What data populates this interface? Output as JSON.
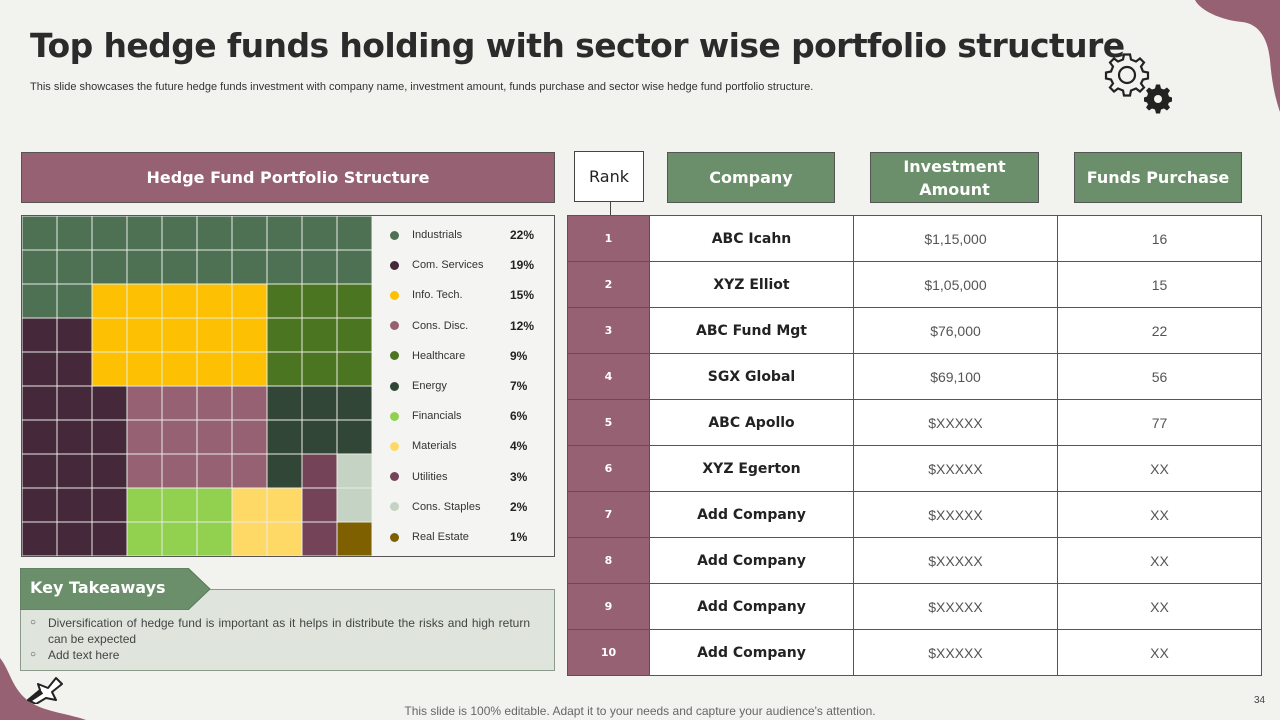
{
  "title": "Top hedge funds holding with sector wise portfolio structure",
  "subtitle": "This slide showcases the future hedge funds investment with company name, investment amount, funds purchase and sector wise hedge fund portfolio structure.",
  "portfolio": {
    "header": "Hedge Fund Portfolio Structure",
    "sectors": [
      {
        "label": "Industrials",
        "value": "22%",
        "color": "#4e7154"
      },
      {
        "label": "Com. Services",
        "value": "19%",
        "color": "#45283a"
      },
      {
        "label": "Info. Tech.",
        "value": "15%",
        "color": "#fdc003"
      },
      {
        "label": "Cons. Disc.",
        "value": "12%",
        "color": "#976174"
      },
      {
        "label": "Healthcare",
        "value": "9%",
        "color": "#4b7520"
      },
      {
        "label": "Energy",
        "value": "7%",
        "color": "#324638"
      },
      {
        "label": "Financials",
        "value": "6%",
        "color": "#92d050"
      },
      {
        "label": "Materials",
        "value": "4%",
        "color": "#ffd966"
      },
      {
        "label": "Utilities",
        "value": "3%",
        "color": "#744357"
      },
      {
        "label": "Cons. Staples",
        "value": "2%",
        "color": "#c5d3c4"
      },
      {
        "label": "Real Estate",
        "value": "1%",
        "color": "#7f6000"
      }
    ]
  },
  "table": {
    "headers": {
      "rank": "Rank",
      "company": "Company",
      "investment": "Investment Amount",
      "funds": "Funds Purchase"
    },
    "rows": [
      {
        "rank": "1",
        "company": "ABC Icahn",
        "investment": "$1,15,000",
        "funds": "16"
      },
      {
        "rank": "2",
        "company": "XYZ Elliot",
        "investment": "$1,05,000",
        "funds": "15"
      },
      {
        "rank": "3",
        "company": "ABC Fund Mgt",
        "investment": "$76,000",
        "funds": "22"
      },
      {
        "rank": "4",
        "company": "SGX Global",
        "investment": "$69,100",
        "funds": "56"
      },
      {
        "rank": "5",
        "company": "ABC Apollo",
        "investment": "$XXXXX",
        "funds": "77"
      },
      {
        "rank": "6",
        "company": "XYZ Egerton",
        "investment": "$XXXXX",
        "funds": "XX"
      },
      {
        "rank": "7",
        "company": "Add Company",
        "investment": "$XXXXX",
        "funds": "XX"
      },
      {
        "rank": "8",
        "company": "Add Company",
        "investment": "$XXXXX",
        "funds": "XX"
      },
      {
        "rank": "9",
        "company": "Add Company",
        "investment": "$XXXXX",
        "funds": "XX"
      },
      {
        "rank": "10",
        "company": "Add Company",
        "investment": "$XXXXX",
        "funds": "XX"
      }
    ]
  },
  "takeaways": {
    "title": "Key Takeaways",
    "items": [
      "Diversification of hedge fund is important as it helps in distribute the risks and high return can be expected",
      "Add text here"
    ]
  },
  "footer": "This slide is 100% editable. Adapt it to your needs and capture your audience's attention.",
  "page_number": "34",
  "icons": {
    "gears": "gears-icon",
    "arrow": "arrow-decoration-icon",
    "bullet": "○"
  },
  "colors": {
    "mauve": "#976174",
    "green": "#6b8f6a",
    "background": "#f2f3ef",
    "takeaway_bg": "#dfe5dc"
  }
}
